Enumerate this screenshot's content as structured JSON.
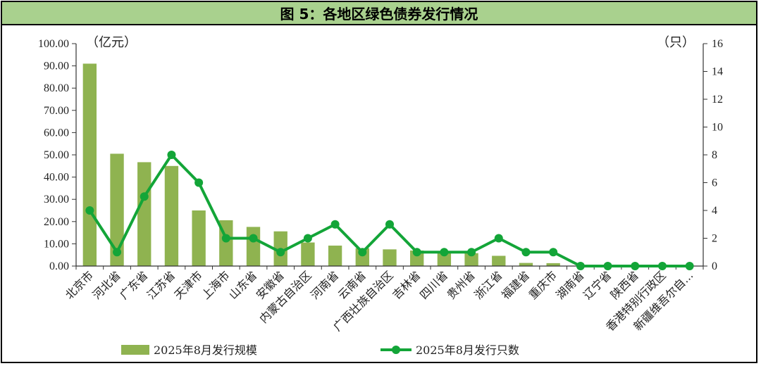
{
  "title": "图 5：各地区绿色债券发行情况",
  "chart_data": {
    "type": "bar",
    "title": "图 5：各地区绿色债券发行情况",
    "categories": [
      "北京市",
      "河北省",
      "广东省",
      "江苏省",
      "天津市",
      "上海市",
      "山东省",
      "安徽省",
      "内蒙古自治区",
      "河南省",
      "云南省",
      "广西壮族自治区",
      "吉林省",
      "四川省",
      "贵州省",
      "浙江省",
      "福建省",
      "重庆市",
      "湖南省",
      "辽宁省",
      "陕西省",
      "香港特别行政区",
      "新疆维吾尔自..."
    ],
    "series": [
      {
        "name": "2025年8月发行规模",
        "type": "bar",
        "axis": "left",
        "color": "#8fb350",
        "values": [
          91.0,
          50.5,
          46.7,
          45.0,
          25.0,
          20.6,
          17.6,
          15.6,
          10.6,
          9.2,
          8.0,
          7.5,
          7.0,
          6.5,
          5.8,
          4.6,
          1.4,
          1.3,
          0,
          0,
          0,
          0,
          0
        ]
      },
      {
        "name": "2025年8月发行只数",
        "type": "line",
        "axis": "right",
        "color": "#13a538",
        "values": [
          4,
          1,
          5,
          8,
          6,
          2,
          2,
          1,
          2,
          3,
          1,
          3,
          1,
          1,
          1,
          2,
          1,
          1,
          0,
          0,
          0,
          0,
          0
        ]
      }
    ],
    "y_left": {
      "unit_label": "（亿元）",
      "range": [
        0,
        100
      ],
      "ticks": [
        "0.00",
        "10.00",
        "20.00",
        "30.00",
        "40.00",
        "50.00",
        "60.00",
        "70.00",
        "80.00",
        "90.00",
        "100.00"
      ]
    },
    "y_right": {
      "unit_label": "（只）",
      "range": [
        0,
        16
      ],
      "ticks": [
        "0",
        "2",
        "4",
        "6",
        "8",
        "10",
        "12",
        "14",
        "16"
      ]
    },
    "grid": false,
    "legend_placement": "bottom"
  }
}
